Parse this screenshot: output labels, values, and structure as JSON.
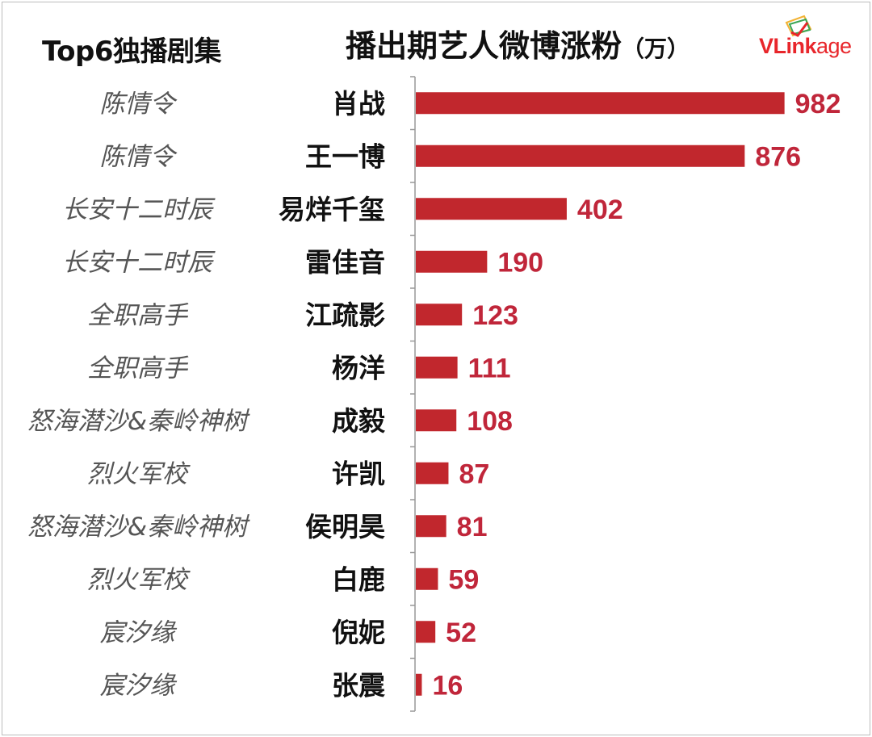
{
  "left_title": "Top6独播剧集",
  "title": "播出期艺人微博涨粉",
  "unit_label": "（万）",
  "logo": {
    "text_prefix": "VLink",
    "text_suffix": "age"
  },
  "colors": {
    "bar": "#c1272d",
    "value": "#c0263a",
    "axis": "#999999"
  },
  "chart_data": {
    "type": "bar",
    "orientation": "horizontal",
    "title": "播出期艺人微博涨粉（万）",
    "categories": [
      "肖战",
      "王一博",
      "易烊千玺",
      "雷佳音",
      "江疏影",
      "杨洋",
      "成毅",
      "许凯",
      "侯明昊",
      "白鹿",
      "倪妮",
      "张震"
    ],
    "shows": [
      "陈情令",
      "陈情令",
      "长安十二时辰",
      "长安十二时辰",
      "全职高手",
      "全职高手",
      "怒海潜沙&秦岭神树",
      "烈火军校",
      "怒海潜沙&秦岭神树",
      "烈火军校",
      "宸汐缘",
      "宸汐缘"
    ],
    "values": [
      982,
      876,
      402,
      190,
      123,
      111,
      108,
      87,
      81,
      59,
      52,
      16
    ],
    "xlim": [
      0,
      1000
    ],
    "grid": false,
    "legend": "none"
  }
}
